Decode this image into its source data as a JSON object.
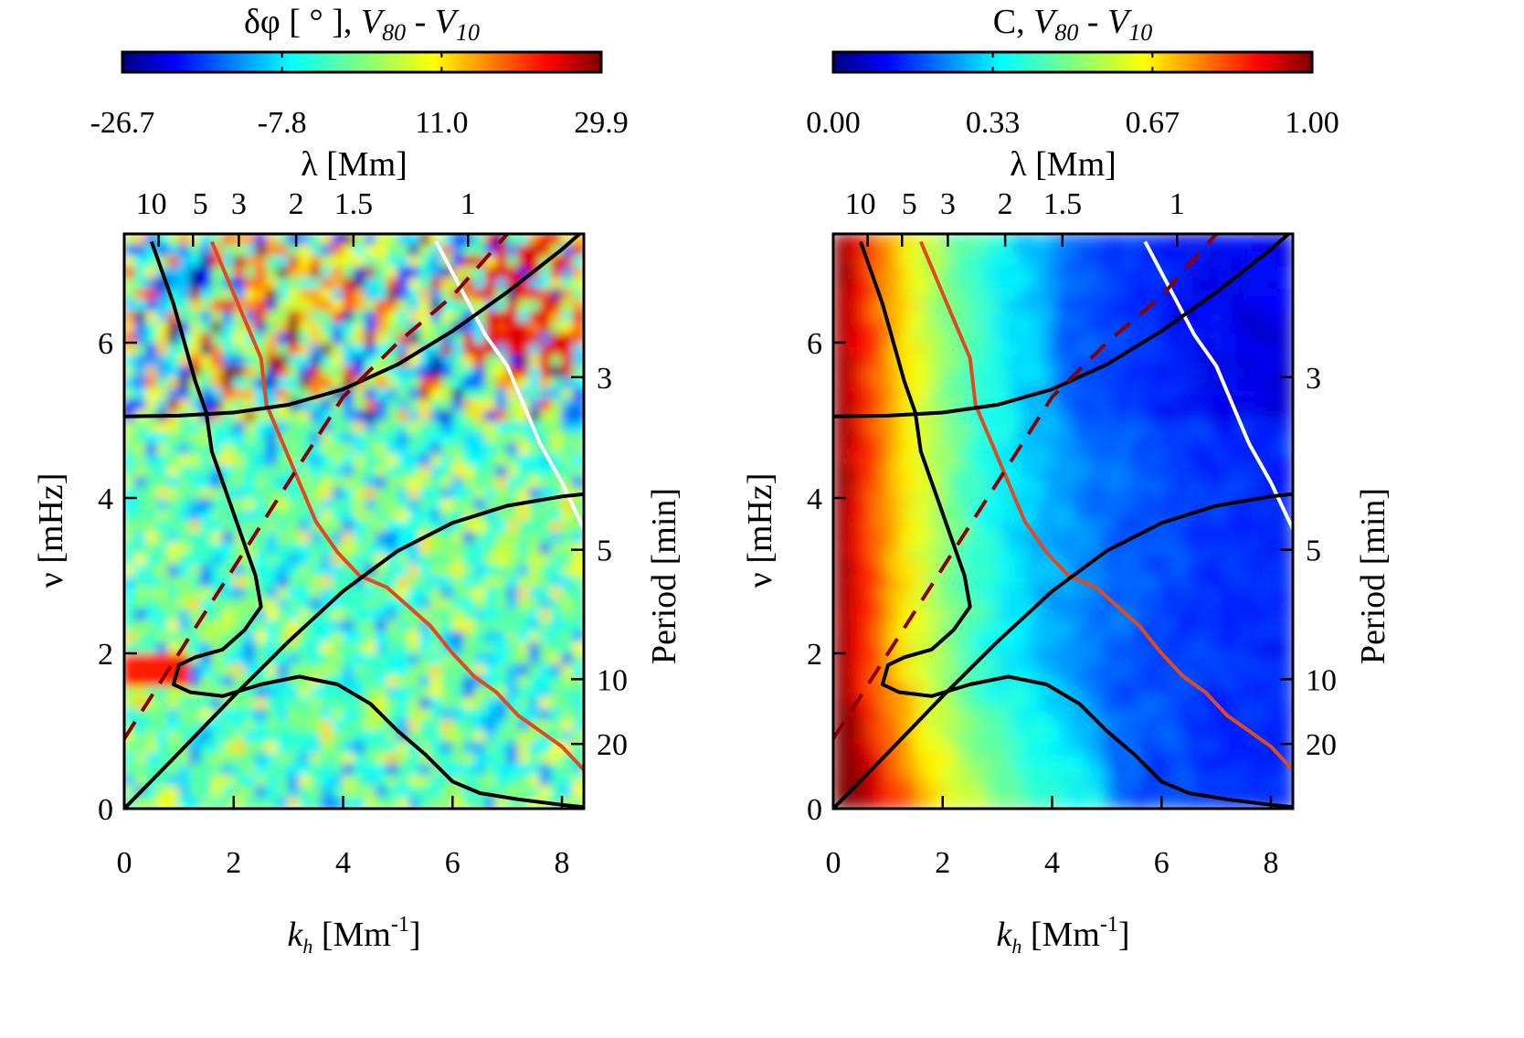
{
  "chart_data": [
    {
      "type": "heatmap",
      "colorbar": {
        "title": "δφ [ ° ],",
        "title_var": "V",
        "title_sub1": "80",
        "title_minus": " - ",
        "title_sub2": "10",
        "ticks": [
          "-26.7",
          "-7.8",
          "11.0",
          "29.9"
        ],
        "range": [
          -26.7,
          29.9
        ],
        "colormap": "jet"
      },
      "xlabel_main": "k",
      "xlabel_sub": "h",
      "xlabel_unit": "[Mm",
      "xlabel_exp": "-1",
      "xlabel_close": "]",
      "xlim": [
        0,
        8.4
      ],
      "xticks": [
        0,
        2,
        4,
        6,
        8
      ],
      "ylabel": "ν [mHz]",
      "ylim": [
        0,
        7.4
      ],
      "yticks": [
        0,
        2,
        4,
        6
      ],
      "top_axis_label": "λ [Mm]",
      "top_ticks": [
        "10",
        "5",
        "3",
        "2",
        "1.5",
        "1"
      ],
      "top_tick_lambda": [
        10,
        5,
        3,
        2,
        1.5,
        1
      ],
      "right_axis_label": "Period [min]",
      "right_ticks": [
        "3",
        "5",
        "10",
        "20"
      ],
      "right_tick_minutes": [
        3,
        5,
        10,
        20
      ],
      "curves": [
        {
          "name": "lamb-mode",
          "color": "#000000",
          "style": "solid",
          "k": [
            0,
            1,
            2,
            3,
            4,
            5,
            6,
            7,
            8,
            8.4
          ],
          "nu": [
            0,
            0.72,
            1.45,
            2.15,
            2.8,
            3.32,
            3.68,
            3.9,
            4.02,
            4.05
          ]
        },
        {
          "name": "acoustic-cutoff",
          "color": "#000000",
          "style": "solid",
          "k": [
            0,
            1,
            2,
            3,
            4,
            5,
            6,
            7,
            8,
            8.4
          ],
          "nu": [
            5.05,
            5.06,
            5.1,
            5.2,
            5.4,
            5.72,
            6.15,
            6.65,
            7.2,
            7.45
          ]
        },
        {
          "name": "f-mode",
          "color": "#8b0000",
          "style": "dashed",
          "k": [
            0,
            1,
            2,
            3,
            4,
            5,
            6,
            7
          ],
          "nu": [
            0.9,
            2.0,
            3.1,
            4.2,
            5.3,
            6.0,
            6.6,
            7.4
          ]
        }
      ],
      "contours": [
        {
          "name": "black-contour",
          "color": "#000000",
          "k": [
            0.5,
            0.7,
            0.9,
            1.1,
            1.3,
            1.5,
            1.6,
            1.8,
            2.0,
            2.2,
            2.4,
            2.5,
            2.2,
            1.8,
            1.3,
            1.0,
            0.9,
            1.2,
            1.8,
            2.5,
            3.2,
            3.9,
            4.5,
            5.0,
            5.5,
            6.0,
            6.5,
            7.2,
            8.0,
            8.4
          ],
          "nu": [
            7.3,
            6.9,
            6.5,
            6.0,
            5.5,
            5.1,
            4.6,
            4.2,
            3.8,
            3.4,
            3.0,
            2.6,
            2.3,
            2.05,
            1.95,
            1.85,
            1.6,
            1.5,
            1.45,
            1.6,
            1.7,
            1.6,
            1.35,
            1.0,
            0.7,
            0.35,
            0.2,
            0.12,
            0.05,
            0.02
          ]
        },
        {
          "name": "orange-contour",
          "color": "#e04a20",
          "k": [
            1.6,
            1.9,
            2.2,
            2.5,
            2.6,
            2.9,
            3.2,
            3.5,
            3.9,
            4.3,
            4.8,
            5.2,
            5.6,
            6.0,
            6.4,
            6.8,
            7.2,
            7.6,
            8.0,
            8.4
          ],
          "nu": [
            7.3,
            6.8,
            6.3,
            5.8,
            5.2,
            4.7,
            4.2,
            3.7,
            3.3,
            3.0,
            2.85,
            2.6,
            2.35,
            2.0,
            1.7,
            1.5,
            1.2,
            1.0,
            0.8,
            0.5
          ]
        },
        {
          "name": "white-contour",
          "color": "#ffffff",
          "k": [
            5.7,
            6.0,
            6.3,
            6.6,
            7.0,
            7.3,
            7.6,
            8.0,
            8.4
          ],
          "nu": [
            7.3,
            6.9,
            6.5,
            6.1,
            5.7,
            5.2,
            4.7,
            4.2,
            3.6
          ]
        }
      ],
      "field_pattern": "noisy phase difference; red/blue patches above 5 mHz, green/cyan below"
    },
    {
      "type": "heatmap",
      "colorbar": {
        "title": "C,",
        "title_var": "V",
        "title_sub1": "80",
        "title_minus": " - ",
        "title_sub2": "10",
        "ticks": [
          "0.00",
          "0.33",
          "0.67",
          "1.00"
        ],
        "range": [
          0,
          1
        ],
        "colormap": "jet"
      },
      "xlabel_main": "k",
      "xlabel_sub": "h",
      "xlabel_unit": "[Mm",
      "xlabel_exp": "-1",
      "xlabel_close": "]",
      "xlim": [
        0,
        8.4
      ],
      "xticks": [
        0,
        2,
        4,
        6,
        8
      ],
      "ylabel": "ν [mHz]",
      "ylim": [
        0,
        7.4
      ],
      "yticks": [
        0,
        2,
        4,
        6
      ],
      "top_axis_label": "λ [Mm]",
      "top_ticks": [
        "10",
        "5",
        "3",
        "2",
        "1.5",
        "1"
      ],
      "top_tick_lambda": [
        10,
        5,
        3,
        2,
        1.5,
        1
      ],
      "right_axis_label": "Period [min]",
      "right_ticks": [
        "3",
        "5",
        "10",
        "20"
      ],
      "right_tick_minutes": [
        3,
        5,
        10,
        20
      ],
      "curves": [
        {
          "name": "lamb-mode",
          "color": "#000000",
          "style": "solid",
          "k": [
            0,
            1,
            2,
            3,
            4,
            5,
            6,
            7,
            8,
            8.4
          ],
          "nu": [
            0,
            0.72,
            1.45,
            2.15,
            2.8,
            3.32,
            3.68,
            3.9,
            4.02,
            4.05
          ]
        },
        {
          "name": "acoustic-cutoff",
          "color": "#000000",
          "style": "solid",
          "k": [
            0,
            1,
            2,
            3,
            4,
            5,
            6,
            7,
            8,
            8.4
          ],
          "nu": [
            5.05,
            5.06,
            5.1,
            5.2,
            5.4,
            5.72,
            6.15,
            6.65,
            7.2,
            7.45
          ]
        },
        {
          "name": "f-mode",
          "color": "#8b0000",
          "style": "dashed",
          "k": [
            0,
            1,
            2,
            3,
            4,
            5,
            6,
            7
          ],
          "nu": [
            0.9,
            2.0,
            3.1,
            4.2,
            5.3,
            6.0,
            6.6,
            7.4
          ]
        }
      ],
      "contours": [
        {
          "name": "black-contour",
          "color": "#000000",
          "k": [
            0.5,
            0.7,
            0.9,
            1.1,
            1.3,
            1.5,
            1.6,
            1.8,
            2.0,
            2.2,
            2.4,
            2.5,
            2.2,
            1.8,
            1.3,
            1.0,
            0.9,
            1.2,
            1.8,
            2.5,
            3.2,
            3.9,
            4.5,
            5.0,
            5.5,
            6.0,
            6.5,
            7.2,
            8.0,
            8.4
          ],
          "nu": [
            7.3,
            6.9,
            6.5,
            6.0,
            5.5,
            5.1,
            4.6,
            4.2,
            3.8,
            3.4,
            3.0,
            2.6,
            2.3,
            2.05,
            1.95,
            1.85,
            1.6,
            1.5,
            1.45,
            1.6,
            1.7,
            1.6,
            1.35,
            1.0,
            0.7,
            0.35,
            0.2,
            0.12,
            0.05,
            0.02
          ]
        },
        {
          "name": "orange-contour",
          "color": "#e04a20",
          "k": [
            1.6,
            1.9,
            2.2,
            2.5,
            2.6,
            2.9,
            3.2,
            3.5,
            3.9,
            4.3,
            4.8,
            5.2,
            5.6,
            6.0,
            6.4,
            6.8,
            7.2,
            7.6,
            8.0,
            8.4
          ],
          "nu": [
            7.3,
            6.8,
            6.3,
            5.8,
            5.2,
            4.7,
            4.2,
            3.7,
            3.3,
            3.0,
            2.85,
            2.6,
            2.35,
            2.0,
            1.7,
            1.5,
            1.2,
            1.0,
            0.8,
            0.5
          ]
        },
        {
          "name": "white-contour",
          "color": "#ffffff",
          "k": [
            5.7,
            6.0,
            6.3,
            6.6,
            7.0,
            7.3,
            7.6,
            8.0,
            8.4
          ],
          "nu": [
            7.3,
            6.9,
            6.5,
            6.1,
            5.7,
            5.2,
            4.7,
            4.2,
            3.6
          ]
        }
      ],
      "field_pattern": "coherence high (red) at low k, decreasing to blue at high k"
    }
  ]
}
